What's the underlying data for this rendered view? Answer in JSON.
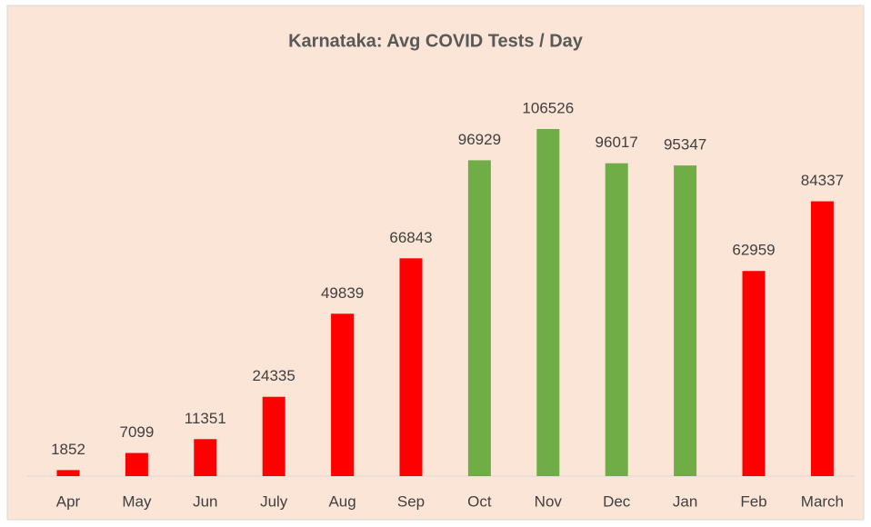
{
  "chart_data": {
    "type": "bar",
    "title": "Karnataka: Avg COVID Tests / Day",
    "categories": [
      "Apr",
      "May",
      "Jun",
      "July",
      "Aug",
      "Sep",
      "Oct",
      "Nov",
      "Dec",
      "Jan",
      "Feb",
      "March"
    ],
    "values": [
      1852,
      7099,
      11351,
      24335,
      49839,
      66843,
      96929,
      106526,
      96017,
      95347,
      62959,
      84337
    ],
    "colors": [
      "#ff0000",
      "#ff0000",
      "#ff0000",
      "#ff0000",
      "#ff0000",
      "#ff0000",
      "#70ad47",
      "#70ad47",
      "#70ad47",
      "#70ad47",
      "#ff0000",
      "#ff0000"
    ]
  }
}
